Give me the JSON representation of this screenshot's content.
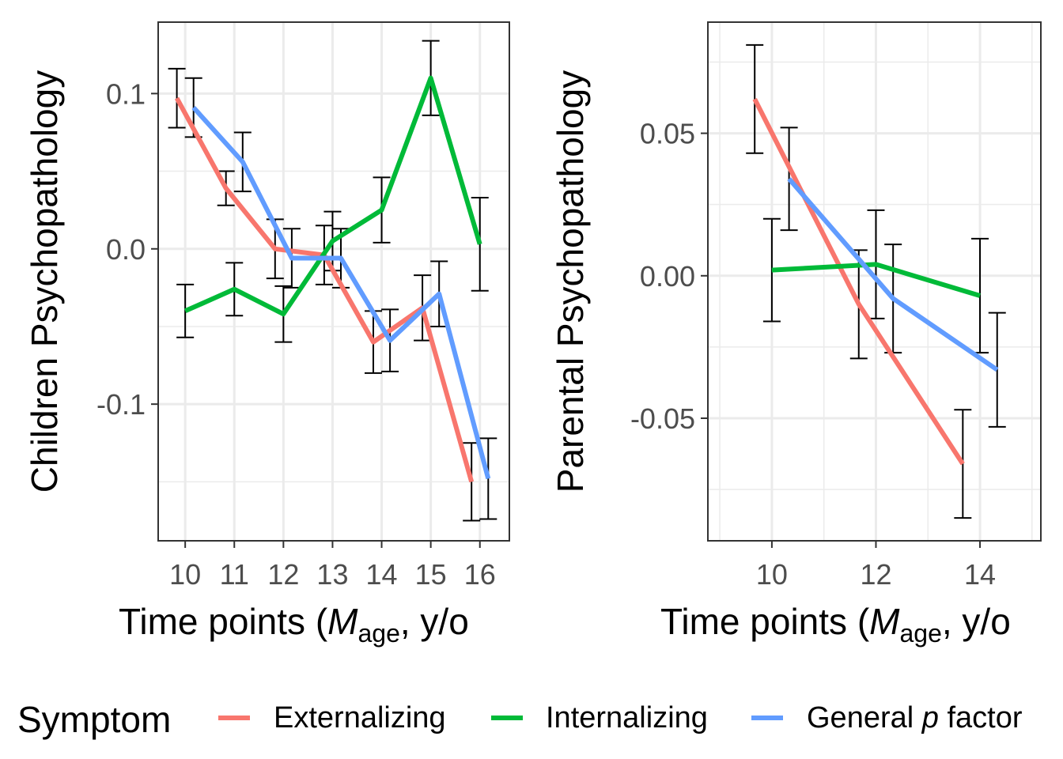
{
  "legend": {
    "title": "Symptom",
    "entries": [
      {
        "label": "Externalizing",
        "color": "#F8766D"
      },
      {
        "label": "Internalizing",
        "color": "#00BA38"
      },
      {
        "label": "General p factor",
        "color": "#619CFF",
        "label_prefix": "General ",
        "label_italic": "p",
        "label_suffix": " factor"
      }
    ]
  },
  "chart_data": [
    {
      "type": "line",
      "ylabel": "Children Psychopathology",
      "xlabel": "Time points (Mage, y/o",
      "xlabel_parts": {
        "pre": "Time points (",
        "italic": "M",
        "sub": "age",
        "post": ", y/o"
      },
      "x_ticks": [
        10,
        11,
        12,
        13,
        14,
        15,
        16
      ],
      "y_ticks": [
        0.1,
        0.0,
        -0.1
      ],
      "y_tick_labels": [
        "0.1",
        "0.0",
        "-0.1"
      ],
      "xlim": [
        9.45,
        16.6
      ],
      "ylim": [
        -0.188,
        0.146
      ],
      "grid": true,
      "series": [
        {
          "name": "Externalizing",
          "color": "#F8766D",
          "x": [
            9.83,
            10.83,
            11.83,
            12.83,
            13.83,
            14.83,
            15.83
          ],
          "y": [
            0.097,
            0.039,
            0.0,
            -0.004,
            -0.06,
            -0.038,
            -0.15
          ],
          "err": [
            0.019,
            0.011,
            0.019,
            0.019,
            0.02,
            0.021,
            0.025
          ]
        },
        {
          "name": "Internalizing",
          "color": "#00BA38",
          "x": [
            10.0,
            11.0,
            12.0,
            13.0,
            14.0,
            15.0,
            16.0
          ],
          "y": [
            -0.04,
            -0.026,
            -0.042,
            0.005,
            0.025,
            0.11,
            0.003
          ],
          "err": [
            0.017,
            0.017,
            0.018,
            0.019,
            0.021,
            0.024,
            0.03
          ]
        },
        {
          "name": "General p factor",
          "color": "#619CFF",
          "x": [
            10.17,
            11.17,
            12.17,
            13.17,
            14.17,
            15.17,
            16.17
          ],
          "y": [
            0.091,
            0.056,
            -0.006,
            -0.006,
            -0.059,
            -0.029,
            -0.148
          ],
          "err": [
            0.019,
            0.019,
            0.019,
            0.019,
            0.02,
            0.021,
            0.026
          ]
        }
      ]
    },
    {
      "type": "line",
      "ylabel": "Parental Psychopathology",
      "xlabel": "Time points (Mage, y/o",
      "xlabel_parts": {
        "pre": "Time points (",
        "italic": "M",
        "sub": "age",
        "post": ", y/o"
      },
      "x_ticks": [
        10,
        12,
        14
      ],
      "y_ticks": [
        0.05,
        0.0,
        -0.05
      ],
      "y_tick_labels": [
        "0.05",
        "0.00",
        "-0.05"
      ],
      "xlim": [
        8.77,
        15.17
      ],
      "ylim": [
        -0.093,
        0.089
      ],
      "grid": true,
      "series": [
        {
          "name": "Externalizing",
          "color": "#F8766D",
          "x": [
            9.67,
            11.67,
            13.67
          ],
          "y": [
            0.062,
            -0.01,
            -0.066
          ],
          "err": [
            0.019,
            0.019,
            0.019
          ]
        },
        {
          "name": "Internalizing",
          "color": "#00BA38",
          "x": [
            10.0,
            12.0,
            14.0
          ],
          "y": [
            0.002,
            0.004,
            -0.007
          ],
          "err": [
            0.018,
            0.019,
            0.02
          ]
        },
        {
          "name": "General p factor",
          "color": "#619CFF",
          "x": [
            10.33,
            12.33,
            14.33
          ],
          "y": [
            0.034,
            -0.008,
            -0.033
          ],
          "err": [
            0.018,
            0.019,
            0.02
          ]
        }
      ]
    }
  ]
}
